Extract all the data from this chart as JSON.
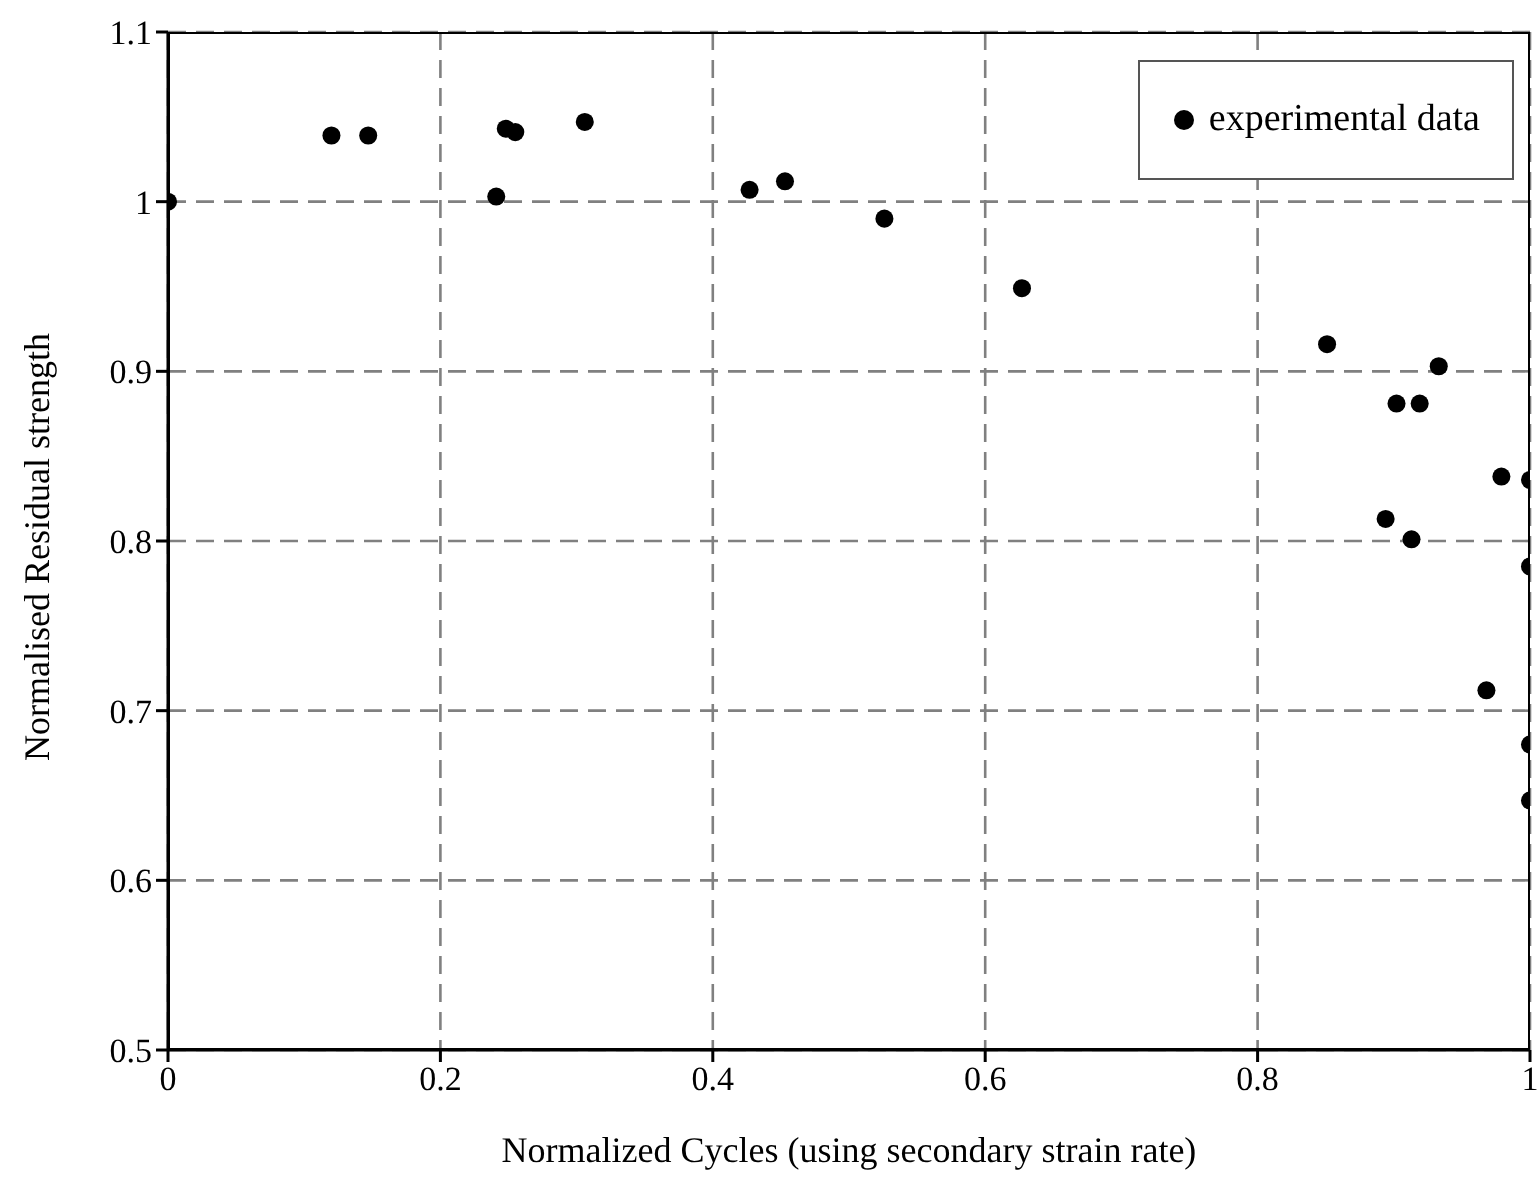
{
  "chart_data": {
    "type": "scatter",
    "xlabel": "Normalized Cycles (using secondary strain rate)",
    "ylabel": "Normalised Residual strength",
    "series": [
      {
        "name": "experimental data",
        "color": "#000000",
        "x": [
          0,
          0.12,
          0.147,
          0.241,
          0.248,
          0.255,
          0.306,
          0.427,
          0.453,
          0.526,
          0.627,
          0.851,
          0.933,
          0.902,
          0.919,
          0.979,
          1.0,
          0.894,
          0.913,
          1.0,
          0.968,
          1.0,
          1.0
        ],
        "values": [
          1.0,
          1.039,
          1.039,
          1.003,
          1.043,
          1.041,
          1.047,
          1.007,
          1.012,
          0.99,
          0.949,
          0.916,
          0.903,
          0.881,
          0.881,
          0.838,
          0.836,
          0.813,
          0.801,
          0.785,
          0.712,
          0.68,
          0.647
        ]
      }
    ],
    "xlim": [
      0,
      1
    ],
    "xticks": [
      0,
      0.2,
      0.4,
      0.6,
      0.8,
      1
    ],
    "ylim": [
      0.5,
      1.1
    ],
    "yticks": [
      0.5,
      0.6,
      0.7,
      0.8,
      0.9,
      1,
      1.1
    ],
    "grid": true,
    "legend": "top right",
    "marker": "circle"
  }
}
